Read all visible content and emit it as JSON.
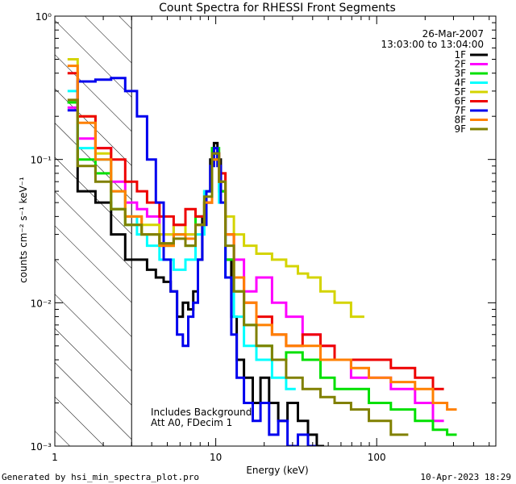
{
  "chart_data": {
    "type": "line",
    "title": "Count Spectra for RHESSI Front Segments",
    "xlabel": "Energy (keV)",
    "ylabel": "counts cm⁻² s⁻¹ keV⁻¹",
    "xscale": "log",
    "yscale": "log",
    "xlim": [
      1,
      550
    ],
    "ylim": [
      0.001,
      1
    ],
    "x_ticks": [
      {
        "value": 1,
        "label": "1"
      },
      {
        "value": 10,
        "label": "10"
      },
      {
        "value": 100,
        "label": "100"
      }
    ],
    "y_ticks": [
      {
        "value": 1,
        "label": "10⁰"
      },
      {
        "value": 0.1,
        "label": "10⁻¹"
      },
      {
        "value": 0.01,
        "label": "10⁻²"
      },
      {
        "value": 0.001,
        "label": "10⁻³"
      }
    ],
    "date": "26-Mar-2007",
    "time_range": "13:03:00 to 13:04:00",
    "shaded_region": {
      "from": 1.0,
      "to": 3.0,
      "style": "diagonal-hatch"
    },
    "annotations": [
      "Includes Background",
      "Att A0, FDecim 1"
    ],
    "legend_position": "top-right",
    "series": [
      {
        "name": "1F",
        "color": "#000000",
        "x": [
          1.2,
          1.6,
          2.0,
          2.5,
          3.0,
          3.5,
          4.0,
          4.5,
          5.0,
          5.5,
          6.0,
          6.5,
          7.0,
          7.5,
          8.0,
          8.5,
          9.0,
          9.5,
          10.0,
          10.5,
          11.0,
          12.0,
          13.0,
          14.0,
          16.0,
          18.0,
          20.0,
          23.0,
          26.0,
          30.0,
          35.0,
          40.0,
          45.0
        ],
        "values": [
          0.25,
          0.06,
          0.05,
          0.03,
          0.02,
          0.02,
          0.017,
          0.015,
          0.014,
          0.012,
          0.008,
          0.01,
          0.009,
          0.012,
          0.02,
          0.04,
          0.06,
          0.1,
          0.13,
          0.1,
          0.06,
          0.02,
          0.008,
          0.004,
          0.003,
          0.002,
          0.003,
          0.002,
          0.0015,
          0.002,
          0.0015,
          0.0012,
          0.001
        ]
      },
      {
        "name": "2F",
        "color": "#ff00ff",
        "x": [
          1.2,
          1.6,
          2.0,
          2.5,
          3.0,
          3.5,
          4.0,
          5.0,
          6.0,
          7.0,
          8.0,
          9.0,
          10.0,
          11.0,
          12.0,
          14.0,
          16.0,
          20.0,
          25.0,
          30.0,
          40.0,
          50.0,
          60.0,
          80.0,
          100.0,
          150.0,
          200.0,
          250.0
        ],
        "values": [
          0.23,
          0.14,
          0.12,
          0.07,
          0.05,
          0.045,
          0.04,
          0.03,
          0.035,
          0.03,
          0.035,
          0.05,
          0.11,
          0.07,
          0.03,
          0.02,
          0.012,
          0.015,
          0.01,
          0.008,
          0.006,
          0.005,
          0.004,
          0.003,
          0.003,
          0.0025,
          0.002,
          0.0015
        ]
      },
      {
        "name": "3F",
        "color": "#00e000",
        "x": [
          1.2,
          1.6,
          2.0,
          2.5,
          3.0,
          4.0,
          5.0,
          6.0,
          7.0,
          8.0,
          9.0,
          10.0,
          11.0,
          12.0,
          14.0,
          16.0,
          20.0,
          25.0,
          30.0,
          40.0,
          50.0,
          60.0,
          80.0,
          100.0,
          150.0,
          200.0,
          250.0,
          300.0
        ],
        "values": [
          0.25,
          0.1,
          0.08,
          0.045,
          0.035,
          0.03,
          0.025,
          0.03,
          0.025,
          0.04,
          0.06,
          0.12,
          0.06,
          0.02,
          0.012,
          0.007,
          0.005,
          0.004,
          0.0045,
          0.004,
          0.003,
          0.0025,
          0.0025,
          0.002,
          0.0018,
          0.0015,
          0.0013,
          0.0012
        ]
      },
      {
        "name": "4F",
        "color": "#00ffff",
        "x": [
          1.2,
          1.6,
          2.0,
          2.5,
          3.0,
          3.5,
          4.0,
          5.0,
          6.0,
          7.0,
          8.0,
          9.0,
          10.0,
          11.0,
          12.0,
          14.0,
          16.0,
          20.0,
          25.0,
          30.0
        ],
        "values": [
          0.3,
          0.12,
          0.1,
          0.06,
          0.04,
          0.03,
          0.025,
          0.02,
          0.017,
          0.02,
          0.03,
          0.06,
          0.1,
          0.05,
          0.015,
          0.008,
          0.005,
          0.004,
          0.003,
          0.0025
        ]
      },
      {
        "name": "5F",
        "color": "#d4d400",
        "x": [
          1.2,
          1.6,
          2.0,
          2.5,
          3.0,
          4.0,
          5.0,
          6.0,
          7.0,
          8.0,
          9.0,
          10.0,
          11.0,
          12.0,
          14.0,
          16.0,
          20.0,
          25.0,
          30.0,
          35.0,
          40.0,
          50.0,
          60.0,
          80.0
        ],
        "values": [
          0.5,
          0.2,
          0.11,
          0.06,
          0.04,
          0.035,
          0.03,
          0.035,
          0.03,
          0.035,
          0.05,
          0.1,
          0.08,
          0.04,
          0.03,
          0.025,
          0.022,
          0.02,
          0.018,
          0.016,
          0.015,
          0.012,
          0.01,
          0.008
        ]
      },
      {
        "name": "6F",
        "color": "#ee0000",
        "x": [
          1.2,
          1.6,
          2.0,
          2.5,
          3.0,
          3.5,
          4.0,
          5.0,
          6.0,
          7.0,
          8.0,
          9.0,
          10.0,
          11.0,
          12.0,
          14.0,
          16.0,
          20.0,
          25.0,
          30.0,
          40.0,
          50.0,
          60.0,
          80.0,
          100.0,
          150.0,
          200.0,
          250.0
        ],
        "values": [
          0.4,
          0.2,
          0.12,
          0.1,
          0.07,
          0.06,
          0.05,
          0.04,
          0.035,
          0.045,
          0.04,
          0.05,
          0.11,
          0.08,
          0.03,
          0.015,
          0.01,
          0.008,
          0.006,
          0.005,
          0.006,
          0.005,
          0.004,
          0.004,
          0.004,
          0.0035,
          0.003,
          0.0025
        ]
      },
      {
        "name": "7F",
        "color": "#0000ee",
        "x": [
          1.2,
          1.6,
          2.0,
          2.5,
          3.0,
          3.5,
          4.0,
          4.5,
          5.0,
          5.5,
          6.0,
          6.5,
          7.0,
          7.5,
          8.0,
          8.5,
          9.0,
          9.5,
          10.0,
          10.5,
          11.0,
          12.0,
          13.0,
          14.0,
          16.0,
          18.0,
          20.0,
          23.0,
          26.0,
          30.0,
          35.0,
          40.0
        ],
        "values": [
          0.22,
          0.35,
          0.36,
          0.37,
          0.3,
          0.2,
          0.1,
          0.05,
          0.02,
          0.012,
          0.006,
          0.005,
          0.008,
          0.01,
          0.02,
          0.035,
          0.06,
          0.09,
          0.12,
          0.09,
          0.05,
          0.015,
          0.006,
          0.003,
          0.002,
          0.0015,
          0.002,
          0.0012,
          0.0015,
          0.001,
          0.0012,
          0.001
        ]
      },
      {
        "name": "8F",
        "color": "#ff8000",
        "x": [
          1.2,
          1.6,
          2.0,
          2.5,
          3.0,
          4.0,
          5.0,
          6.0,
          7.0,
          8.0,
          9.0,
          10.0,
          11.0,
          12.0,
          14.0,
          16.0,
          20.0,
          25.0,
          30.0,
          40.0,
          50.0,
          60.0,
          80.0,
          100.0,
          150.0,
          200.0,
          250.0,
          300.0
        ],
        "values": [
          0.45,
          0.18,
          0.1,
          0.06,
          0.04,
          0.03,
          0.025,
          0.03,
          0.028,
          0.035,
          0.05,
          0.1,
          0.07,
          0.03,
          0.015,
          0.01,
          0.007,
          0.006,
          0.005,
          0.005,
          0.004,
          0.004,
          0.0035,
          0.003,
          0.0028,
          0.0025,
          0.002,
          0.0018
        ]
      },
      {
        "name": "9F",
        "color": "#808000",
        "x": [
          1.2,
          1.6,
          2.0,
          2.5,
          3.0,
          4.0,
          5.0,
          6.0,
          7.0,
          8.0,
          9.0,
          10.0,
          11.0,
          12.0,
          14.0,
          16.0,
          20.0,
          25.0,
          30.0,
          40.0,
          50.0,
          60.0,
          80.0,
          100.0,
          150.0
        ],
        "values": [
          0.26,
          0.09,
          0.07,
          0.045,
          0.035,
          0.03,
          0.026,
          0.028,
          0.025,
          0.035,
          0.055,
          0.11,
          0.07,
          0.025,
          0.012,
          0.007,
          0.005,
          0.004,
          0.003,
          0.0025,
          0.0022,
          0.002,
          0.0018,
          0.0015,
          0.0012
        ]
      }
    ]
  },
  "footer": {
    "generated_by": "Generated by hsi_min_spectra_plot.pro",
    "render_date": "10-Apr-2023 18:29"
  }
}
